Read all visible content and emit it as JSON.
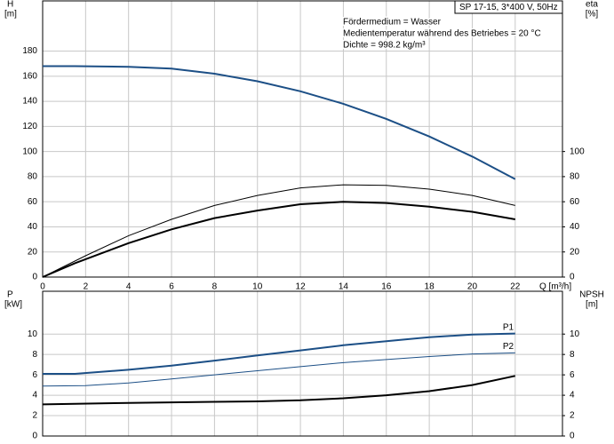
{
  "chart_data": [
    {
      "type": "line",
      "title": "SP 17-15, 3*400 V, 50Hz",
      "annotations": [
        "Fördermedium = Wasser",
        "Medientemperatur während des Betriebes = 20 °C",
        "Dichte = 998.2 kg/m³"
      ],
      "ylabel": [
        "H",
        "[m]"
      ],
      "y2label": [
        "eta",
        "[%]"
      ],
      "xlabel": "Q [m³/h]",
      "xlim": [
        0,
        24.2
      ],
      "xticks": [
        0,
        2,
        4,
        6,
        8,
        10,
        12,
        14,
        16,
        18,
        20,
        22
      ],
      "ylim": [
        0,
        220
      ],
      "yticks": [
        0,
        20,
        40,
        60,
        80,
        100,
        120,
        140,
        160,
        180
      ],
      "y2lim": [
        0,
        220
      ],
      "y2ticks": [
        0,
        20,
        40,
        60,
        80,
        100
      ],
      "grid": true,
      "series": [
        {
          "color": "#1c4f86",
          "linewidth": 2,
          "x": [
            0,
            1.5,
            4,
            6,
            8,
            10,
            12,
            14,
            16,
            18,
            20,
            22
          ],
          "values": [
            168,
            168,
            167.5,
            166,
            162,
            156,
            148,
            138,
            126,
            112,
            96,
            78
          ]
        },
        {
          "color": "#000000",
          "linewidth": 1,
          "axis": "y2",
          "x": [
            0,
            2,
            4,
            6,
            8,
            10,
            12,
            14,
            16,
            18,
            20,
            22
          ],
          "values": [
            0,
            17,
            33,
            46,
            57,
            65,
            71,
            73.5,
            73,
            70,
            65,
            57
          ]
        },
        {
          "color": "#000000",
          "linewidth": 2,
          "axis": "y2",
          "x": [
            0,
            1.5,
            4,
            6,
            8,
            10,
            12,
            14,
            16,
            18,
            20,
            22
          ],
          "values": [
            0,
            11,
            27,
            38,
            47,
            53,
            58,
            60,
            59,
            56,
            52,
            46
          ]
        }
      ]
    },
    {
      "type": "line",
      "ylabel": [
        "P",
        "[kW]"
      ],
      "y2label": [
        "NPSH",
        "[m]"
      ],
      "xlim": [
        0,
        24.2
      ],
      "xticks": [
        0,
        2,
        4,
        6,
        8,
        10,
        12,
        14,
        16,
        18,
        20,
        22
      ],
      "ylim": [
        0,
        14.2
      ],
      "yticks": [
        0,
        2,
        4,
        6,
        8,
        10
      ],
      "y2lim": [
        0,
        14.2
      ],
      "y2ticks": [
        0,
        2,
        4,
        6,
        8,
        10
      ],
      "grid": true,
      "series": [
        {
          "name": "P1",
          "color": "#1c4f86",
          "linewidth": 2,
          "x": [
            0,
            1.5,
            4,
            6,
            8,
            10,
            12,
            14,
            16,
            18,
            20,
            22
          ],
          "values": [
            6.1,
            6.1,
            6.5,
            6.9,
            7.4,
            7.9,
            8.4,
            8.9,
            9.3,
            9.7,
            9.95,
            10.05
          ]
        },
        {
          "name": "P2",
          "color": "#1c4f86",
          "linewidth": 1,
          "x": [
            0,
            2,
            4,
            6,
            8,
            10,
            12,
            14,
            16,
            18,
            20,
            22
          ],
          "values": [
            4.9,
            4.95,
            5.2,
            5.6,
            6.0,
            6.4,
            6.8,
            7.2,
            7.5,
            7.8,
            8.05,
            8.15
          ]
        },
        {
          "color": "#000000",
          "linewidth": 2,
          "axis": "y2",
          "x": [
            0,
            1.5,
            4,
            6,
            8,
            10,
            12,
            14,
            16,
            18,
            20,
            22
          ],
          "values": [
            3.1,
            3.15,
            3.25,
            3.3,
            3.35,
            3.4,
            3.5,
            3.7,
            4.0,
            4.4,
            5.0,
            5.9
          ]
        }
      ]
    }
  ]
}
